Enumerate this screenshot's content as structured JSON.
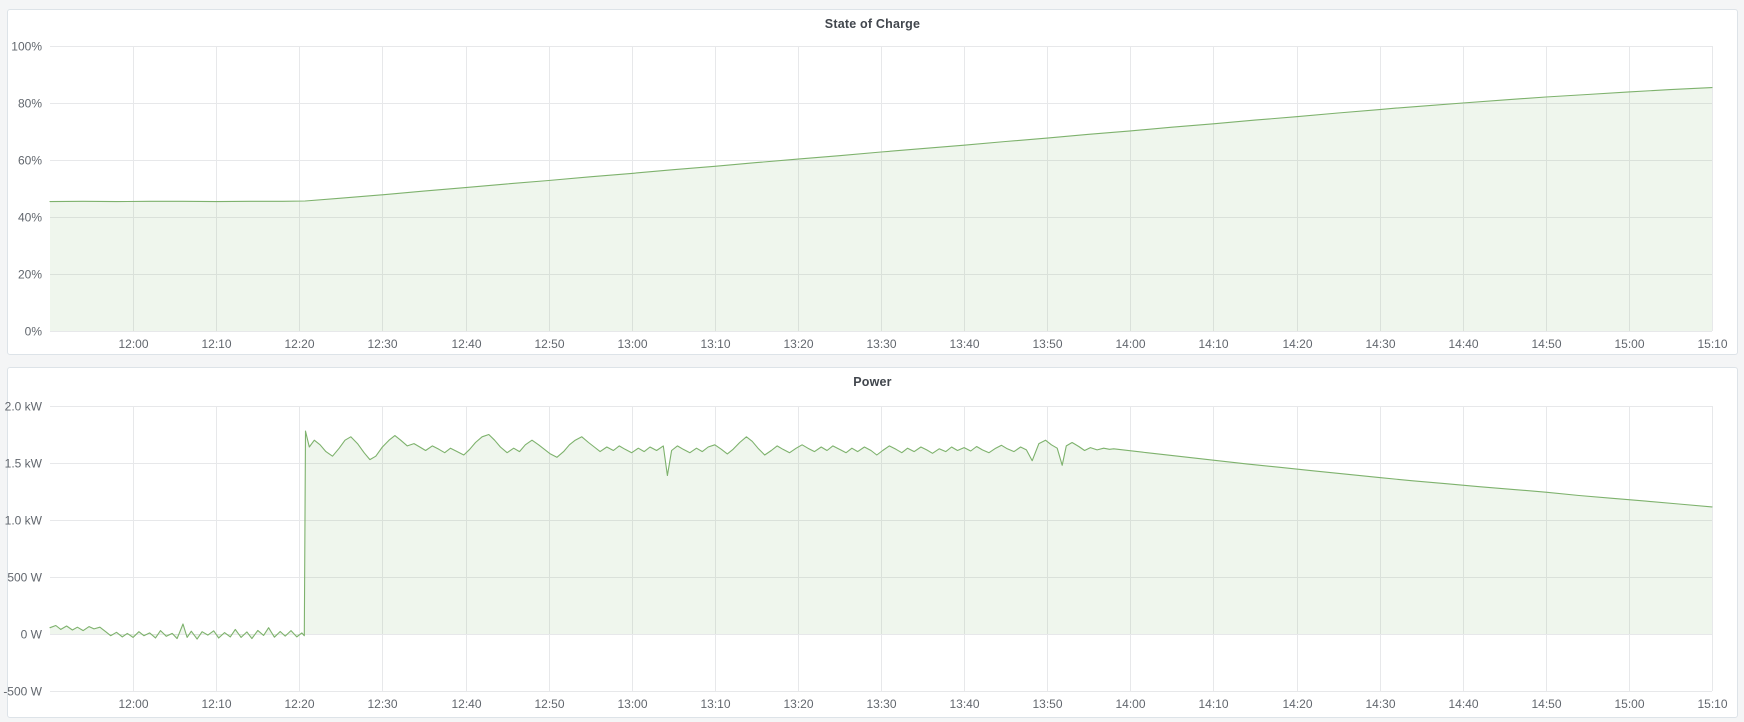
{
  "page": {
    "background": "#f4f5f6",
    "panel_background": "#ffffff",
    "panel_border": "#dde3e8",
    "grid_color": "#e7e8ea",
    "tick_text_color": "#62676e",
    "title_color": "#41464d",
    "series_green": "#7eb26d"
  },
  "chart_data": [
    {
      "type": "area",
      "title": "State of Charge",
      "legend": "none",
      "grid": true,
      "x_axis": {
        "start_time": "11:50",
        "end_time": "15:10",
        "span_minutes": 200,
        "tick_minutes": [
          10,
          20,
          30,
          40,
          50,
          60,
          70,
          80,
          90,
          100,
          110,
          120,
          130,
          140,
          150,
          160,
          170,
          180,
          190,
          200
        ],
        "tick_labels": [
          "12:00",
          "12:10",
          "12:20",
          "12:30",
          "12:40",
          "12:50",
          "13:00",
          "13:10",
          "13:20",
          "13:30",
          "13:40",
          "13:50",
          "14:00",
          "14:10",
          "14:20",
          "14:30",
          "14:40",
          "14:50",
          "15:00",
          "15:10"
        ]
      },
      "y_axis": {
        "min": 0,
        "max": 100,
        "tick_values": [
          100,
          80,
          60,
          40,
          20,
          0
        ],
        "tick_labels": [
          "100%",
          "80%",
          "60%",
          "40%",
          "20%",
          "0%"
        ]
      },
      "fill_baseline": 0,
      "series": [
        {
          "name": "State of Charge",
          "unit": "percent",
          "color": "#7eb26d",
          "fill": "rgba(126,178,109,0.12)",
          "points": [
            [
              0,
              45.4
            ],
            [
              4,
              45.5
            ],
            [
              8,
              45.4
            ],
            [
              12,
              45.5
            ],
            [
              16,
              45.5
            ],
            [
              20,
              45.4
            ],
            [
              24,
              45.5
            ],
            [
              28,
              45.5
            ],
            [
              30.7,
              45.6
            ],
            [
              35,
              46.6
            ],
            [
              40,
              47.8
            ],
            [
              45,
              49.1
            ],
            [
              50,
              50.3
            ],
            [
              55,
              51.6
            ],
            [
              60,
              52.8
            ],
            [
              65,
              54.1
            ],
            [
              70,
              55.3
            ],
            [
              75,
              56.6
            ],
            [
              80,
              57.8
            ],
            [
              85,
              59.1
            ],
            [
              90,
              60.3
            ],
            [
              95,
              61.5
            ],
            [
              100,
              62.8
            ],
            [
              105,
              64.0
            ],
            [
              110,
              65.2
            ],
            [
              115,
              66.5
            ],
            [
              120,
              67.7
            ],
            [
              125,
              69.0
            ],
            [
              130,
              70.2
            ],
            [
              135,
              71.5
            ],
            [
              140,
              72.7
            ],
            [
              145,
              74.0
            ],
            [
              150,
              75.2
            ],
            [
              155,
              76.5
            ],
            [
              160,
              77.7
            ],
            [
              162,
              78.2
            ],
            [
              166,
              79.1
            ],
            [
              170,
              80.0
            ],
            [
              175,
              81.1
            ],
            [
              180,
              82.1
            ],
            [
              185,
              83.0
            ],
            [
              190,
              83.9
            ],
            [
              195,
              84.7
            ],
            [
              200,
              85.4
            ]
          ]
        }
      ]
    },
    {
      "type": "area",
      "title": "Power",
      "legend": "none",
      "grid": true,
      "x_axis": {
        "start_time": "11:50",
        "end_time": "15:10",
        "span_minutes": 200,
        "tick_minutes": [
          10,
          20,
          30,
          40,
          50,
          60,
          70,
          80,
          90,
          100,
          110,
          120,
          130,
          140,
          150,
          160,
          170,
          180,
          190,
          200
        ],
        "tick_labels": [
          "12:00",
          "12:10",
          "12:20",
          "12:30",
          "12:40",
          "12:50",
          "13:00",
          "13:10",
          "13:20",
          "13:30",
          "13:40",
          "13:50",
          "14:00",
          "14:10",
          "14:20",
          "14:30",
          "14:40",
          "14:50",
          "15:00",
          "15:10"
        ]
      },
      "y_axis": {
        "min": -500,
        "max": 2000,
        "tick_values": [
          2000,
          1500,
          1000,
          500,
          0,
          -500
        ],
        "tick_labels": [
          "2.0 kW",
          "1.5 kW",
          "1.0 kW",
          "500 W",
          "0 W",
          "-500 W"
        ]
      },
      "fill_baseline": 0,
      "series": [
        {
          "name": "Power",
          "unit": "watt",
          "color": "#7eb26d",
          "fill": "rgba(126,178,109,0.12)",
          "points": [
            [
              0,
              55
            ],
            [
              0.7,
              75
            ],
            [
              1.3,
              40
            ],
            [
              2,
              70
            ],
            [
              2.7,
              35
            ],
            [
              3.3,
              60
            ],
            [
              4,
              30
            ],
            [
              4.7,
              65
            ],
            [
              5.3,
              45
            ],
            [
              6,
              60
            ],
            [
              6.7,
              20
            ],
            [
              7.3,
              -15
            ],
            [
              8,
              15
            ],
            [
              8.7,
              -25
            ],
            [
              9.3,
              5
            ],
            [
              10,
              -30
            ],
            [
              10.7,
              20
            ],
            [
              11.3,
              -15
            ],
            [
              12,
              10
            ],
            [
              12.7,
              -35
            ],
            [
              13.3,
              30
            ],
            [
              14,
              -20
            ],
            [
              14.7,
              5
            ],
            [
              15.3,
              -40
            ],
            [
              16,
              88
            ],
            [
              16.5,
              -30
            ],
            [
              17,
              25
            ],
            [
              17.7,
              -45
            ],
            [
              18.3,
              20
            ],
            [
              19,
              -10
            ],
            [
              19.7,
              28
            ],
            [
              20.3,
              -35
            ],
            [
              21,
              12
            ],
            [
              21.7,
              -25
            ],
            [
              22.3,
              40
            ],
            [
              23,
              -30
            ],
            [
              23.7,
              18
            ],
            [
              24.3,
              -40
            ],
            [
              25,
              32
            ],
            [
              25.7,
              -12
            ],
            [
              26.3,
              55
            ],
            [
              27,
              -28
            ],
            [
              27.7,
              22
            ],
            [
              28.3,
              -18
            ],
            [
              29,
              30
            ],
            [
              29.7,
              -25
            ],
            [
              30.3,
              10
            ],
            [
              30.6,
              -15
            ],
            [
              30.75,
              1780
            ],
            [
              31.2,
              1640
            ],
            [
              31.8,
              1700
            ],
            [
              32.5,
              1660
            ],
            [
              33.2,
              1600
            ],
            [
              34,
              1560
            ],
            [
              34.8,
              1630
            ],
            [
              35.5,
              1700
            ],
            [
              36.2,
              1730
            ],
            [
              37,
              1670
            ],
            [
              37.8,
              1590
            ],
            [
              38.5,
              1530
            ],
            [
              39.2,
              1560
            ],
            [
              40,
              1640
            ],
            [
              40.8,
              1700
            ],
            [
              41.5,
              1740
            ],
            [
              42.2,
              1700
            ],
            [
              43,
              1650
            ],
            [
              43.8,
              1670
            ],
            [
              44.5,
              1640
            ],
            [
              45.2,
              1610
            ],
            [
              46,
              1650
            ],
            [
              46.8,
              1620
            ],
            [
              47.5,
              1590
            ],
            [
              48.2,
              1630
            ],
            [
              49,
              1600
            ],
            [
              49.8,
              1570
            ],
            [
              50.5,
              1620
            ],
            [
              51.2,
              1680
            ],
            [
              52,
              1730
            ],
            [
              52.8,
              1750
            ],
            [
              53.5,
              1700
            ],
            [
              54.2,
              1640
            ],
            [
              55,
              1590
            ],
            [
              55.8,
              1630
            ],
            [
              56.5,
              1600
            ],
            [
              57.2,
              1660
            ],
            [
              58,
              1700
            ],
            [
              58.8,
              1660
            ],
            [
              59.5,
              1620
            ],
            [
              60.2,
              1580
            ],
            [
              61,
              1550
            ],
            [
              61.8,
              1600
            ],
            [
              62.5,
              1660
            ],
            [
              63.2,
              1700
            ],
            [
              64,
              1730
            ],
            [
              64.8,
              1680
            ],
            [
              65.5,
              1640
            ],
            [
              66.2,
              1600
            ],
            [
              67,
              1640
            ],
            [
              67.8,
              1610
            ],
            [
              68.5,
              1650
            ],
            [
              69.2,
              1620
            ],
            [
              70,
              1590
            ],
            [
              70.8,
              1630
            ],
            [
              71.5,
              1600
            ],
            [
              72.2,
              1640
            ],
            [
              73,
              1610
            ],
            [
              73.8,
              1650
            ],
            [
              74.3,
              1390
            ],
            [
              74.8,
              1610
            ],
            [
              75.5,
              1650
            ],
            [
              76.2,
              1620
            ],
            [
              77,
              1590
            ],
            [
              77.8,
              1630
            ],
            [
              78.5,
              1600
            ],
            [
              79.2,
              1640
            ],
            [
              80,
              1660
            ],
            [
              80.8,
              1620
            ],
            [
              81.5,
              1580
            ],
            [
              82.2,
              1620
            ],
            [
              83,
              1680
            ],
            [
              83.8,
              1730
            ],
            [
              84.5,
              1690
            ],
            [
              85.2,
              1630
            ],
            [
              86,
              1570
            ],
            [
              86.8,
              1610
            ],
            [
              87.5,
              1650
            ],
            [
              88.2,
              1620
            ],
            [
              89,
              1590
            ],
            [
              89.8,
              1630
            ],
            [
              90.5,
              1660
            ],
            [
              91.2,
              1630
            ],
            [
              92,
              1600
            ],
            [
              92.8,
              1640
            ],
            [
              93.5,
              1610
            ],
            [
              94.2,
              1650
            ],
            [
              95,
              1620
            ],
            [
              95.8,
              1590
            ],
            [
              96.5,
              1630
            ],
            [
              97.2,
              1600
            ],
            [
              98,
              1640
            ],
            [
              98.8,
              1610
            ],
            [
              99.5,
              1570
            ],
            [
              100.2,
              1610
            ],
            [
              101,
              1650
            ],
            [
              101.8,
              1620
            ],
            [
              102.5,
              1590
            ],
            [
              103.2,
              1630
            ],
            [
              104,
              1600
            ],
            [
              104.8,
              1640
            ],
            [
              105.5,
              1615
            ],
            [
              106.2,
              1585
            ],
            [
              107,
              1625
            ],
            [
              107.8,
              1600
            ],
            [
              108.5,
              1640
            ],
            [
              109.2,
              1610
            ],
            [
              110,
              1635
            ],
            [
              110.8,
              1605
            ],
            [
              111.5,
              1645
            ],
            [
              112.2,
              1615
            ],
            [
              113,
              1590
            ],
            [
              113.8,
              1630
            ],
            [
              114.5,
              1655
            ],
            [
              115.2,
              1625
            ],
            [
              116,
              1600
            ],
            [
              116.8,
              1640
            ],
            [
              117.5,
              1615
            ],
            [
              118.2,
              1520
            ],
            [
              119,
              1670
            ],
            [
              119.8,
              1700
            ],
            [
              120.5,
              1660
            ],
            [
              121.2,
              1630
            ],
            [
              121.8,
              1480
            ],
            [
              122.3,
              1650
            ],
            [
              123,
              1680
            ],
            [
              123.8,
              1645
            ],
            [
              124.5,
              1610
            ],
            [
              125.2,
              1635
            ],
            [
              126,
              1615
            ],
            [
              126.8,
              1630
            ],
            [
              127.5,
              1620
            ],
            [
              128,
              1625
            ],
            [
              132,
              1590
            ],
            [
              136,
              1558
            ],
            [
              140,
              1525
            ],
            [
              144,
              1492
            ],
            [
              148,
              1462
            ],
            [
              152,
              1432
            ],
            [
              156,
              1402
            ],
            [
              160,
              1372
            ],
            [
              164,
              1344
            ],
            [
              168,
              1318
            ],
            [
              172,
              1292
            ],
            [
              176,
              1268
            ],
            [
              180,
              1244
            ],
            [
              184,
              1215
            ],
            [
              188,
              1190
            ],
            [
              192,
              1166
            ],
            [
              196,
              1140
            ],
            [
              200,
              1115
            ]
          ]
        }
      ]
    }
  ]
}
